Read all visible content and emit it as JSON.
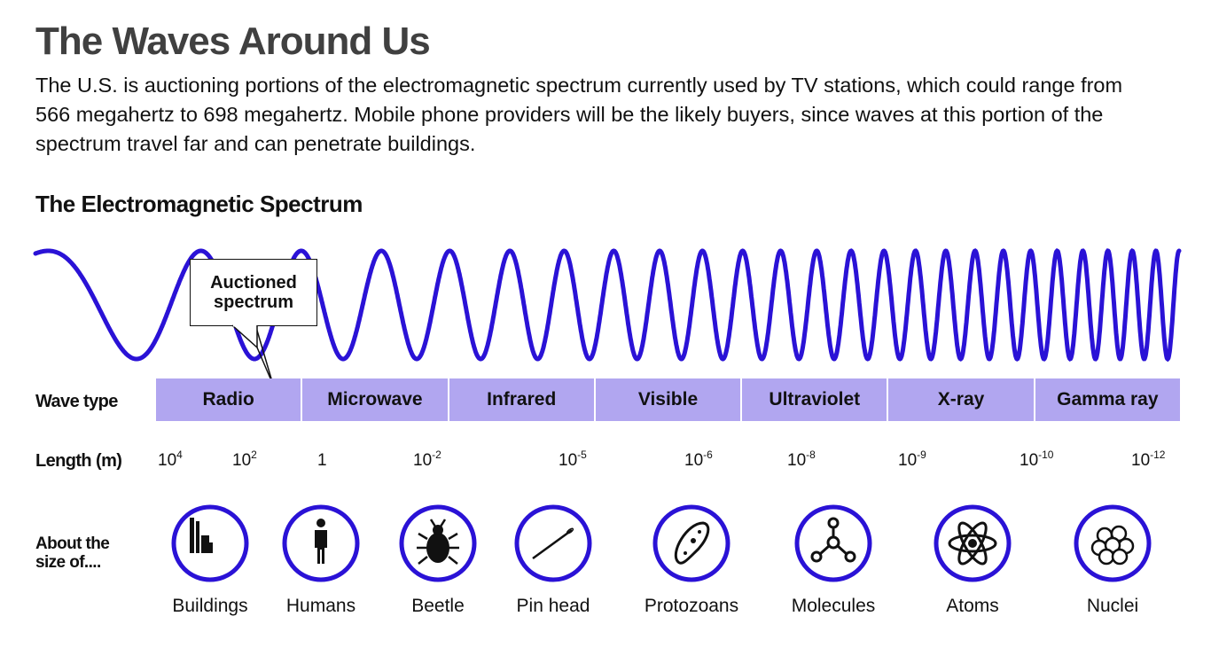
{
  "title": "The Waves Around Us",
  "intro": "The U.S. is auctioning portions of the electromagnetic spectrum currently used by TV stations, which could range from 566 megahertz to 698 megahertz. Mobile phone providers will be the likely buyers, since waves at this portion of the spectrum travel far and can penetrate buildings.",
  "subtitle": "The Electromagnetic Spectrum",
  "callout": {
    "line1": "Auctioned",
    "line2": "spectrum"
  },
  "labels": {
    "wave_type": "Wave type",
    "length": "Length (m)",
    "about": "About the size of...."
  },
  "bands": [
    "Radio",
    "Microwave",
    "Infrared",
    "Visible",
    "Ultraviolet",
    "X-ray",
    "Gamma ray"
  ],
  "lengths": [
    {
      "base": "10",
      "exp": "4"
    },
    {
      "base": "10",
      "exp": "2"
    },
    {
      "base": "1",
      "exp": ""
    },
    {
      "base": "10",
      "exp": "-2"
    },
    {
      "base": "10",
      "exp": "-5"
    },
    {
      "base": "10",
      "exp": "-6"
    },
    {
      "base": "10",
      "exp": "-8"
    },
    {
      "base": "10",
      "exp": "-9"
    },
    {
      "base": "10",
      "exp": "-10"
    },
    {
      "base": "10",
      "exp": "-12"
    }
  ],
  "sizes": [
    {
      "label": "Buildings",
      "icon": "buildings-icon"
    },
    {
      "label": "Humans",
      "icon": "human-icon"
    },
    {
      "label": "Beetle",
      "icon": "beetle-icon"
    },
    {
      "label": "Pin head",
      "icon": "pin-icon"
    },
    {
      "label": "Protozoans",
      "icon": "protozoan-icon"
    },
    {
      "label": "Molecules",
      "icon": "molecule-icon"
    },
    {
      "label": "Atoms",
      "icon": "atom-icon"
    },
    {
      "label": "Nuclei",
      "icon": "nucleus-icon"
    }
  ],
  "colors": {
    "wave": "#2a12d6",
    "band": "#b1a6f0",
    "title": "#404040",
    "icon_ring": "#2a12d6"
  }
}
